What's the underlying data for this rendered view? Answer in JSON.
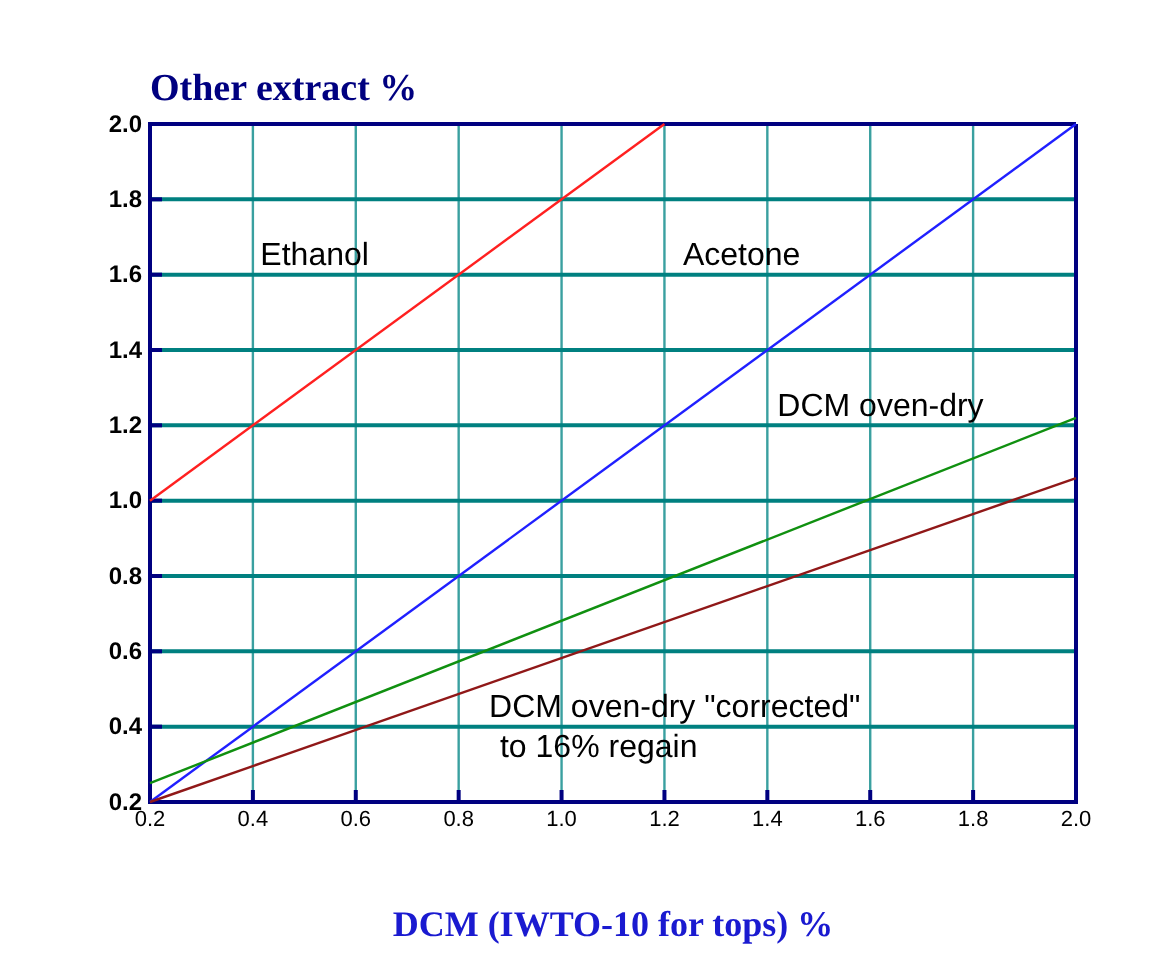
{
  "chart_data": {
    "type": "line",
    "title": "Other extract %",
    "xlabel": "DCM (IWTO-10 for tops) %",
    "xlim": [
      0.2,
      2.0
    ],
    "ylim": [
      0.2,
      2.0
    ],
    "xticks": [
      {
        "value": 0.2,
        "label": "0.2"
      },
      {
        "value": 0.4,
        "label": "0.4"
      },
      {
        "value": 0.6,
        "label": "0.6"
      },
      {
        "value": 0.8,
        "label": "0.8"
      },
      {
        "value": 1.0,
        "label": "1.0"
      },
      {
        "value": 1.2,
        "label": "1.2"
      },
      {
        "value": 1.4,
        "label": "1.4"
      },
      {
        "value": 1.6,
        "label": "1.6"
      },
      {
        "value": 1.8,
        "label": "1.8"
      },
      {
        "value": 2.0,
        "label": "2.0"
      }
    ],
    "yticks": [
      {
        "value": 0.2,
        "label": "0.2"
      },
      {
        "value": 0.4,
        "label": "0.4"
      },
      {
        "value": 0.6,
        "label": "0.6"
      },
      {
        "value": 0.8,
        "label": "0.8"
      },
      {
        "value": 1.0,
        "label": "1.0"
      },
      {
        "value": 1.2,
        "label": "1.2"
      },
      {
        "value": 1.4,
        "label": "1.4"
      },
      {
        "value": 1.6,
        "label": "1.6"
      },
      {
        "value": 1.8,
        "label": "1.8"
      },
      {
        "value": 2.0,
        "label": "2.0"
      }
    ],
    "grid": true,
    "marker": "none",
    "line_style": "solid",
    "series": [
      {
        "name": "Ethanol",
        "color": "#ff2020",
        "x": [
          0.2,
          1.2
        ],
        "values": [
          1.0,
          2.0
        ]
      },
      {
        "name": "Acetone",
        "color": "#2020ff",
        "x": [
          0.2,
          2.0
        ],
        "values": [
          0.2,
          2.0
        ]
      },
      {
        "name": "DCM oven-dry",
        "color": "#109010",
        "x": [
          0.2,
          2.0
        ],
        "values": [
          0.25,
          1.22
        ]
      },
      {
        "name": "DCM oven-dry \"corrected\" to 16% regain",
        "color": "#901818",
        "x": [
          0.2,
          2.0
        ],
        "values": [
          0.2,
          1.06
        ]
      }
    ]
  }
}
